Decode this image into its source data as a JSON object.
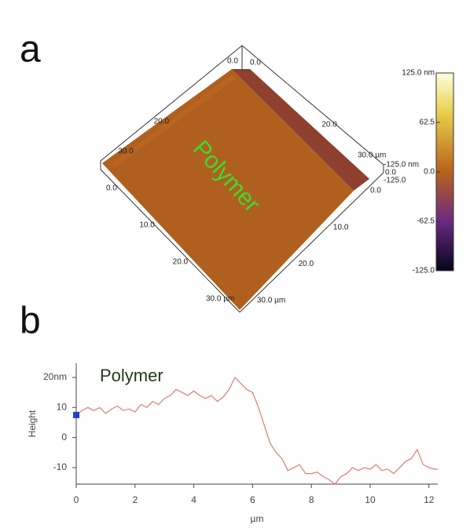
{
  "chart_data": [
    {
      "type": "surface",
      "panel_label": "a",
      "annotation": "Polymer",
      "xlim": [
        0,
        33
      ],
      "front_left_ticks": [
        {
          "value": 0,
          "label": "0.0"
        },
        {
          "value": 10,
          "label": "10.0"
        },
        {
          "value": 20,
          "label": "20.0"
        },
        {
          "value": 30,
          "label": "30.0 µm"
        }
      ],
      "front_right_ticks": [
        {
          "value": 0,
          "label": "0.0"
        },
        {
          "value": 10,
          "label": "10.0"
        },
        {
          "value": 20,
          "label": "20.0"
        },
        {
          "value": 30,
          "label": "30.0 µm"
        }
      ],
      "back_left_ticks": [
        {
          "value": 0,
          "label": "0.0"
        },
        {
          "value": 20,
          "label": "20.0"
        },
        {
          "value": 30,
          "label": "30.0"
        }
      ],
      "back_right_ticks": [
        {
          "value": 0,
          "label": "0.0"
        },
        {
          "value": 20,
          "label": "20.0"
        },
        {
          "value": 30,
          "label": "30.0 µm"
        }
      ],
      "z_labels": [
        "-125.0 nm",
        "0.0",
        "-125.0"
      ],
      "colorbar": {
        "lim": [
          -125,
          125
        ],
        "ticks": [
          {
            "value": 125,
            "label": "125.0 nm"
          },
          62.5,
          {
            "value": 0,
            "label": "0.0"
          },
          -62.5,
          {
            "value": -125,
            "label": "-125.0"
          }
        ]
      }
    },
    {
      "type": "line",
      "panel_label": "b",
      "annotation": "Polymer",
      "ylabel": "Height",
      "xlabel": "µm",
      "xlim": [
        0,
        12.3
      ],
      "ylim": [
        -15.5,
        24.7
      ],
      "xticks": [
        0,
        2,
        4,
        6,
        8,
        10,
        12
      ],
      "yticks": [
        -10,
        0,
        10,
        {
          "value": 20,
          "label": "20nm"
        }
      ],
      "color": "#e07a72",
      "marker_color": "#1f3fd6",
      "x": [
        0,
        0.2,
        0.4,
        0.6,
        0.8,
        1.0,
        1.2,
        1.4,
        1.6,
        1.8,
        2.0,
        2.2,
        2.4,
        2.6,
        2.8,
        3.0,
        3.2,
        3.4,
        3.6,
        3.8,
        4.0,
        4.2,
        4.4,
        4.6,
        4.8,
        5.0,
        5.2,
        5.4,
        5.6,
        5.8,
        6.0,
        6.2,
        6.4,
        6.6,
        6.8,
        7.0,
        7.2,
        7.4,
        7.6,
        7.8,
        8.0,
        8.2,
        8.4,
        8.6,
        8.8,
        9.0,
        9.2,
        9.4,
        9.6,
        9.8,
        10.0,
        10.2,
        10.4,
        10.6,
        10.8,
        11.0,
        11.2,
        11.4,
        11.6,
        11.8,
        12.0,
        12.2,
        12.3
      ],
      "values": [
        7.5,
        9,
        10,
        9,
        10,
        8,
        9.5,
        10.5,
        9,
        9.5,
        8.5,
        11,
        10,
        12,
        11,
        13,
        14,
        16,
        15,
        14,
        15.5,
        14,
        13,
        14,
        12,
        13.5,
        16,
        20,
        18,
        16,
        15,
        10,
        4,
        -2,
        -5,
        -7,
        -11,
        -10,
        -9,
        -12,
        -12,
        -11.5,
        -13,
        -14,
        -15.5,
        -13,
        -12,
        -10,
        -11,
        -10,
        -10.5,
        -9,
        -11,
        -10.5,
        -12,
        -10,
        -8,
        -7,
        -4,
        -9,
        -10,
        -10.5,
        -10.5
      ]
    }
  ]
}
